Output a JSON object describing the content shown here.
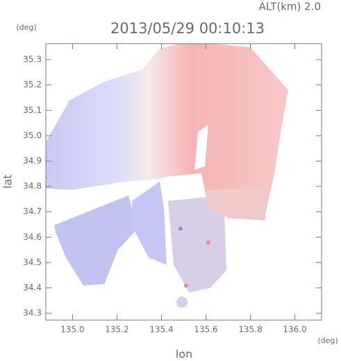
{
  "chart_data": {
    "type": "map",
    "title": "2013/05/29 00:10:13",
    "annotation": "ALT(km) 2.0",
    "y_unit": "(deg)",
    "x_unit": "(deg)",
    "ylabel": "lat",
    "xlabel": "lon",
    "xlim": [
      134.88,
      136.12
    ],
    "ylim": [
      34.273,
      35.363
    ],
    "xticks": [
      {
        "value": 135,
        "label": "135.0"
      },
      135.2,
      135.4,
      135.6,
      135.8,
      {
        "value": 136,
        "label": "136.0"
      }
    ],
    "yticks": [
      34.3,
      34.4,
      34.5,
      34.6,
      34.7,
      34.8,
      34.9,
      {
        "value": 35,
        "label": "35.0"
      },
      35.1,
      35.2,
      35.3
    ]
  }
}
